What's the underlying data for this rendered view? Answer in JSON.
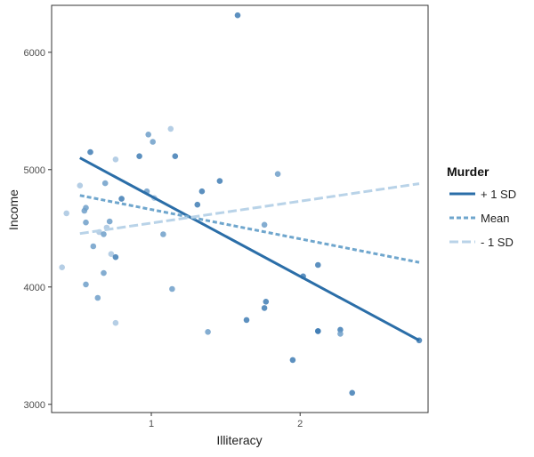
{
  "chart_data": {
    "type": "scatter",
    "xlabel": "Illiteracy",
    "ylabel": "Income",
    "xlim": [
      0.33,
      2.86
    ],
    "ylim": [
      2930,
      6400
    ],
    "x_ticks": [
      1,
      2
    ],
    "y_ticks": [
      3000,
      4000,
      5000,
      6000
    ],
    "legend": {
      "title": "Murder",
      "placement": "right",
      "entries": [
        "+ 1 SD",
        "Mean",
        "- 1 SD"
      ]
    },
    "points": [
      {
        "x": 1.58,
        "y": 6315,
        "shade": "#3f7db4"
      },
      {
        "x": 0.98,
        "y": 5299,
        "shade": "#6f9fc9"
      },
      {
        "x": 1.13,
        "y": 5348,
        "shade": "#a8c6e0"
      },
      {
        "x": 0.59,
        "y": 5149,
        "shade": "#3f7db4"
      },
      {
        "x": 0.92,
        "y": 5114,
        "shade": "#3f7db4"
      },
      {
        "x": 1.01,
        "y": 5237,
        "shade": "#6f9fc9"
      },
      {
        "x": 1.16,
        "y": 5114,
        "shade": "#3f7db4"
      },
      {
        "x": 0.76,
        "y": 5087,
        "shade": "#a8c6e0"
      },
      {
        "x": 1.46,
        "y": 4903,
        "shade": "#3f7db4"
      },
      {
        "x": 1.85,
        "y": 4963,
        "shade": "#6f9fc9"
      },
      {
        "x": 0.52,
        "y": 4864,
        "shade": "#a8c6e0"
      },
      {
        "x": 0.69,
        "y": 4884,
        "shade": "#6f9fc9"
      },
      {
        "x": 0.97,
        "y": 4815,
        "shade": "#6f9fc9"
      },
      {
        "x": 1.34,
        "y": 4815,
        "shade": "#3f7db4"
      },
      {
        "x": 0.8,
        "y": 4751,
        "shade": "#3f7db4"
      },
      {
        "x": 1.02,
        "y": 4758,
        "shade": "#a8c6e0"
      },
      {
        "x": 1.31,
        "y": 4701,
        "shade": "#3f7db4"
      },
      {
        "x": 0.56,
        "y": 4675,
        "shade": "#6f9fc9"
      },
      {
        "x": 0.55,
        "y": 4650,
        "shade": "#6f9fc9"
      },
      {
        "x": 0.43,
        "y": 4628,
        "shade": "#a8c6e0"
      },
      {
        "x": 0.72,
        "y": 4558,
        "shade": "#6f9fc9"
      },
      {
        "x": 0.56,
        "y": 4550,
        "shade": "#6f9fc9"
      },
      {
        "x": 1.76,
        "y": 4530,
        "shade": "#6f9fc9"
      },
      {
        "x": 0.7,
        "y": 4506,
        "shade": "#a8c6e0"
      },
      {
        "x": 0.65,
        "y": 4468,
        "shade": "#a8c6e0"
      },
      {
        "x": 0.68,
        "y": 4450,
        "shade": "#6f9fc9"
      },
      {
        "x": 1.08,
        "y": 4449,
        "shade": "#6f9fc9"
      },
      {
        "x": 0.61,
        "y": 4347,
        "shade": "#6f9fc9"
      },
      {
        "x": 0.73,
        "y": 4281,
        "shade": "#a8c6e0"
      },
      {
        "x": 0.76,
        "y": 4254,
        "shade": "#3f7db4"
      },
      {
        "x": 2.12,
        "y": 4188,
        "shade": "#3f7db4"
      },
      {
        "x": 0.4,
        "y": 4167,
        "shade": "#a8c6e0"
      },
      {
        "x": 0.68,
        "y": 4119,
        "shade": "#6f9fc9"
      },
      {
        "x": 2.02,
        "y": 4091,
        "shade": "#3f7db4"
      },
      {
        "x": 0.56,
        "y": 4022,
        "shade": "#6f9fc9"
      },
      {
        "x": 1.14,
        "y": 3983,
        "shade": "#6f9fc9"
      },
      {
        "x": 0.64,
        "y": 3907,
        "shade": "#6f9fc9"
      },
      {
        "x": 1.77,
        "y": 3875,
        "shade": "#3f7db4"
      },
      {
        "x": 1.76,
        "y": 3821,
        "shade": "#3f7db4"
      },
      {
        "x": 1.64,
        "y": 3719,
        "shade": "#3f7db4"
      },
      {
        "x": 0.76,
        "y": 3694,
        "shade": "#a8c6e0"
      },
      {
        "x": 2.27,
        "y": 3635,
        "shade": "#3f7db4"
      },
      {
        "x": 2.12,
        "y": 3624,
        "shade": "#3f7db4"
      },
      {
        "x": 2.12,
        "y": 3624,
        "shade": "#3f7db4"
      },
      {
        "x": 1.38,
        "y": 3617,
        "shade": "#6f9fc9"
      },
      {
        "x": 2.27,
        "y": 3601,
        "shade": "#6f9fc9"
      },
      {
        "x": 2.8,
        "y": 3545,
        "shade": "#3f7db4"
      },
      {
        "x": 1.95,
        "y": 3378,
        "shade": "#3f7db4"
      },
      {
        "x": 2.35,
        "y": 3098,
        "shade": "#3f7db4"
      }
    ],
    "series": [
      {
        "name": "+ 1 SD",
        "color": "#2b6ea8",
        "dash": "solid",
        "x": [
          0.52,
          2.8
        ],
        "y": [
          5100,
          3545
        ]
      },
      {
        "name": "Mean",
        "color": "#6fa6cd",
        "dash": "dashed",
        "x": [
          0.52,
          2.8
        ],
        "y": [
          4780,
          4210
        ]
      },
      {
        "name": "- 1 SD",
        "color": "#b9d3e8",
        "dash": "longdash",
        "x": [
          0.52,
          2.8
        ],
        "y": [
          4455,
          4880
        ]
      }
    ]
  }
}
